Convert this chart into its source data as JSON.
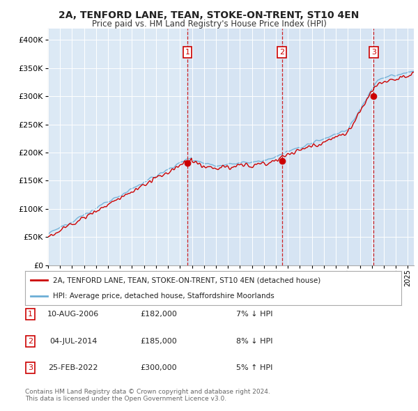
{
  "title": "2A, TENFORD LANE, TEAN, STOKE-ON-TRENT, ST10 4EN",
  "subtitle": "Price paid vs. HM Land Registry's House Price Index (HPI)",
  "bg_color": "#dce9f5",
  "plot_bg": "#dce9f5",
  "transactions": [
    {
      "date": 2006.61,
      "price": 182000,
      "label": "1"
    },
    {
      "date": 2014.5,
      "price": 185000,
      "label": "2"
    },
    {
      "date": 2022.15,
      "price": 300000,
      "label": "3"
    }
  ],
  "transaction_details": [
    {
      "num": "1",
      "date": "10-AUG-2006",
      "price": "£182,000",
      "pct": "7% ↓ HPI"
    },
    {
      "num": "2",
      "date": "04-JUL-2014",
      "price": "£185,000",
      "pct": "8% ↓ HPI"
    },
    {
      "num": "3",
      "date": "25-FEB-2022",
      "price": "£300,000",
      "pct": "5% ↑ HPI"
    }
  ],
  "legend_house": "2A, TENFORD LANE, TEAN, STOKE-ON-TRENT, ST10 4EN (detached house)",
  "legend_hpi": "HPI: Average price, detached house, Staffordshire Moorlands",
  "footnote": "Contains HM Land Registry data © Crown copyright and database right 2024.\nThis data is licensed under the Open Government Licence v3.0.",
  "hpi_color": "#6baed6",
  "house_color": "#cc0000",
  "dashed_color": "#cc0000",
  "shade_color": "#c6d9f0",
  "ylim": [
    0,
    420000
  ],
  "yticks": [
    0,
    50000,
    100000,
    150000,
    200000,
    250000,
    300000,
    350000,
    400000
  ],
  "xmin": 1995.0,
  "xmax": 2025.5
}
